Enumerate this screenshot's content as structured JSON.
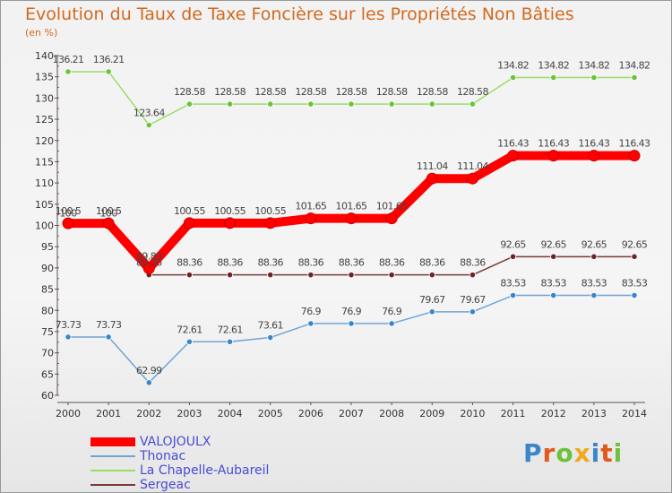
{
  "chart_data": {
    "type": "line",
    "title": "Evolution du Taux de Taxe Foncière sur les Propriétés Non Bâties",
    "ylabel": "(en %)",
    "xlabel": "",
    "ylim": [
      60,
      140
    ],
    "yticks": [
      60,
      65,
      70,
      75,
      80,
      85,
      90,
      95,
      100,
      105,
      110,
      115,
      120,
      125,
      130,
      135,
      140
    ],
    "categories": [
      "2000",
      "2001",
      "2002",
      "2003",
      "2004",
      "2005",
      "2006",
      "2007",
      "2008",
      "2009",
      "2010",
      "2011",
      "2012",
      "2013",
      "2014"
    ],
    "grid": false,
    "series": [
      {
        "name": "VALOJOULX",
        "color": "#ff0000",
        "dot_color": "#ff0000",
        "values": [
          100.5,
          100.5,
          89.89,
          100.55,
          100.55,
          100.55,
          101.65,
          101.65,
          101.65,
          111.04,
          111.04,
          116.43,
          116.43,
          116.43,
          116.43
        ],
        "labels": [
          "100.5",
          "100.5",
          "89.89",
          "100.55",
          "100.55",
          "100.55",
          "101.65",
          "101.65",
          "101.65",
          "111.04",
          "111.04",
          "116.43",
          "116.43",
          "116.43",
          "116.43"
        ]
      },
      {
        "name": "Thonac",
        "color": "#6fa4d6",
        "dot_color": "#3a86c8",
        "values": [
          73.73,
          73.73,
          62.99,
          72.61,
          72.61,
          73.61,
          76.9,
          76.9,
          76.9,
          79.67,
          79.67,
          83.53,
          83.53,
          83.53,
          83.53
        ],
        "labels": [
          "73.73",
          "73.73",
          "62.99",
          "72.61",
          "72.61",
          "73.61",
          "76.9",
          "76.9",
          "76.9",
          "79.67",
          "79.67",
          "83.53",
          "83.53",
          "83.53",
          "83.53"
        ]
      },
      {
        "name": "La Chapelle-Aubareil",
        "color": "#99dd66",
        "dot_color": "#6cc23a",
        "values": [
          136.21,
          136.21,
          123.64,
          128.58,
          128.58,
          128.58,
          128.58,
          128.58,
          128.58,
          128.58,
          128.58,
          134.82,
          134.82,
          134.82,
          134.82
        ],
        "labels": [
          "136.21",
          "136.21",
          "123.64",
          "128.58",
          "128.58",
          "128.58",
          "128.58",
          "128.58",
          "128.58",
          "128.58",
          "128.58",
          "134.82",
          "134.82",
          "134.82",
          "134.82"
        ]
      },
      {
        "name": "Sergeac",
        "color": "#7a3a3a",
        "dot_color": "#6e2424",
        "values": [
          100,
          100,
          88.36,
          88.36,
          88.36,
          88.36,
          88.36,
          88.36,
          88.36,
          88.36,
          88.36,
          92.65,
          92.65,
          92.65,
          92.65
        ],
        "labels": [
          "100",
          "100",
          "88.36",
          "88.36",
          "88.36",
          "88.36",
          "88.36",
          "88.36",
          "88.36",
          "88.36",
          "88.36",
          "92.65",
          "92.65",
          "92.65",
          "92.65"
        ]
      }
    ]
  },
  "logo": {
    "text": "Proxiti",
    "letters": [
      "P",
      "r",
      "o",
      "x",
      "i",
      "t",
      "i"
    ],
    "colors": [
      "#3a86c8",
      "#e05a1e",
      "#6cc23a",
      "#f0a820",
      "#3a86c8",
      "#e05a1e",
      "#6cc23a"
    ]
  }
}
